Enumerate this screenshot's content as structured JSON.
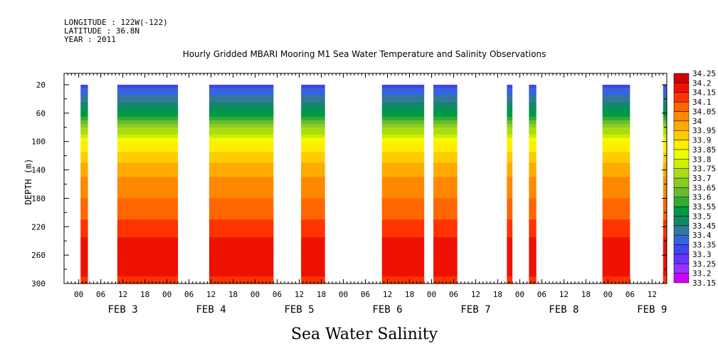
{
  "header": {
    "longitude": "LONGITUDE : 122W(-122)",
    "latitude": "LATITUDE : 36.8N",
    "year": "YEAR : 2011",
    "title": "Hourly Gridded MBARI Mooring M1 Sea Water Temperature and Salinity Observations"
  },
  "footer": {
    "variable_title": "Sea Water Salinity"
  },
  "chart_data": {
    "type": "heatmap",
    "title": "Hourly Gridded MBARI Mooring M1 Sea Water Temperature and Salinity Observations",
    "variable": "Sea Water Salinity",
    "xlabel": "",
    "ylabel": "DEPTH (m)",
    "x_units": "hours since 2011-02-03 00:00",
    "xlim_hours": [
      -4,
      160
    ],
    "ylim": [
      300,
      4
    ],
    "y_ticks": [
      20,
      60,
      100,
      140,
      180,
      220,
      260,
      300
    ],
    "hour_tick_labels": [
      "00",
      "06",
      "12",
      "18"
    ],
    "day_labels": [
      {
        "label": "FEB  3",
        "hour": 12
      },
      {
        "label": "FEB  4",
        "hour": 36
      },
      {
        "label": "FEB  5",
        "hour": 60
      },
      {
        "label": "FEB  6",
        "hour": 84
      },
      {
        "label": "FEB  7",
        "hour": 108
      },
      {
        "label": "FEB  8",
        "hour": 132
      },
      {
        "label": "FEB  9",
        "hour": 156
      }
    ],
    "data_segments_hours": [
      [
        0.5,
        2.5
      ],
      [
        10.5,
        27
      ],
      [
        35.5,
        53
      ],
      [
        60.5,
        67
      ],
      [
        82.5,
        94
      ],
      [
        96.5,
        103
      ],
      [
        116.5,
        118
      ],
      [
        122.5,
        124.5
      ],
      [
        142.5,
        150
      ],
      [
        159,
        162
      ]
    ],
    "depth_profile": [
      {
        "depth": 20,
        "salinity": 33.32
      },
      {
        "depth": 40,
        "salinity": 33.43
      },
      {
        "depth": 60,
        "salinity": 33.53
      },
      {
        "depth": 80,
        "salinity": 33.68
      },
      {
        "depth": 100,
        "salinity": 33.84
      },
      {
        "depth": 120,
        "salinity": 33.92
      },
      {
        "depth": 140,
        "salinity": 33.98
      },
      {
        "depth": 180,
        "salinity": 34.05
      },
      {
        "depth": 220,
        "salinity": 34.12
      },
      {
        "depth": 250,
        "salinity": 34.19
      },
      {
        "depth": 280,
        "salinity": 34.16
      },
      {
        "depth": 300,
        "salinity": 34.14
      }
    ],
    "colorbar": {
      "levels": [
        33.15,
        33.2,
        33.25,
        33.3,
        33.35,
        33.4,
        33.45,
        33.5,
        33.55,
        33.6,
        33.65,
        33.7,
        33.75,
        33.8,
        33.85,
        33.9,
        33.95,
        34,
        34.05,
        34.1,
        34.15,
        34.2,
        34.25
      ],
      "labels": [
        "33.15",
        "33.2",
        "33.25",
        "33.3",
        "33.35",
        "33.4",
        "33.45",
        "33.5",
        "33.55",
        "33.6",
        "33.65",
        "33.7",
        "33.75",
        "33.8",
        "33.85",
        "33.9",
        "33.95",
        "34",
        "34.05",
        "34.1",
        "34.15",
        "34.2",
        "34.25"
      ],
      "colors": [
        "#cc00ff",
        "#9933ff",
        "#6633ff",
        "#4444ee",
        "#3366dd",
        "#337799",
        "#118866",
        "#009944",
        "#33aa33",
        "#66bb33",
        "#88cc22",
        "#aadd11",
        "#ccee00",
        "#eeff00",
        "#ffee00",
        "#ffcc00",
        "#ffaa00",
        "#ff8800",
        "#ff6600",
        "#ff3300",
        "#ee1100",
        "#cc0000",
        "#990000"
      ]
    }
  }
}
